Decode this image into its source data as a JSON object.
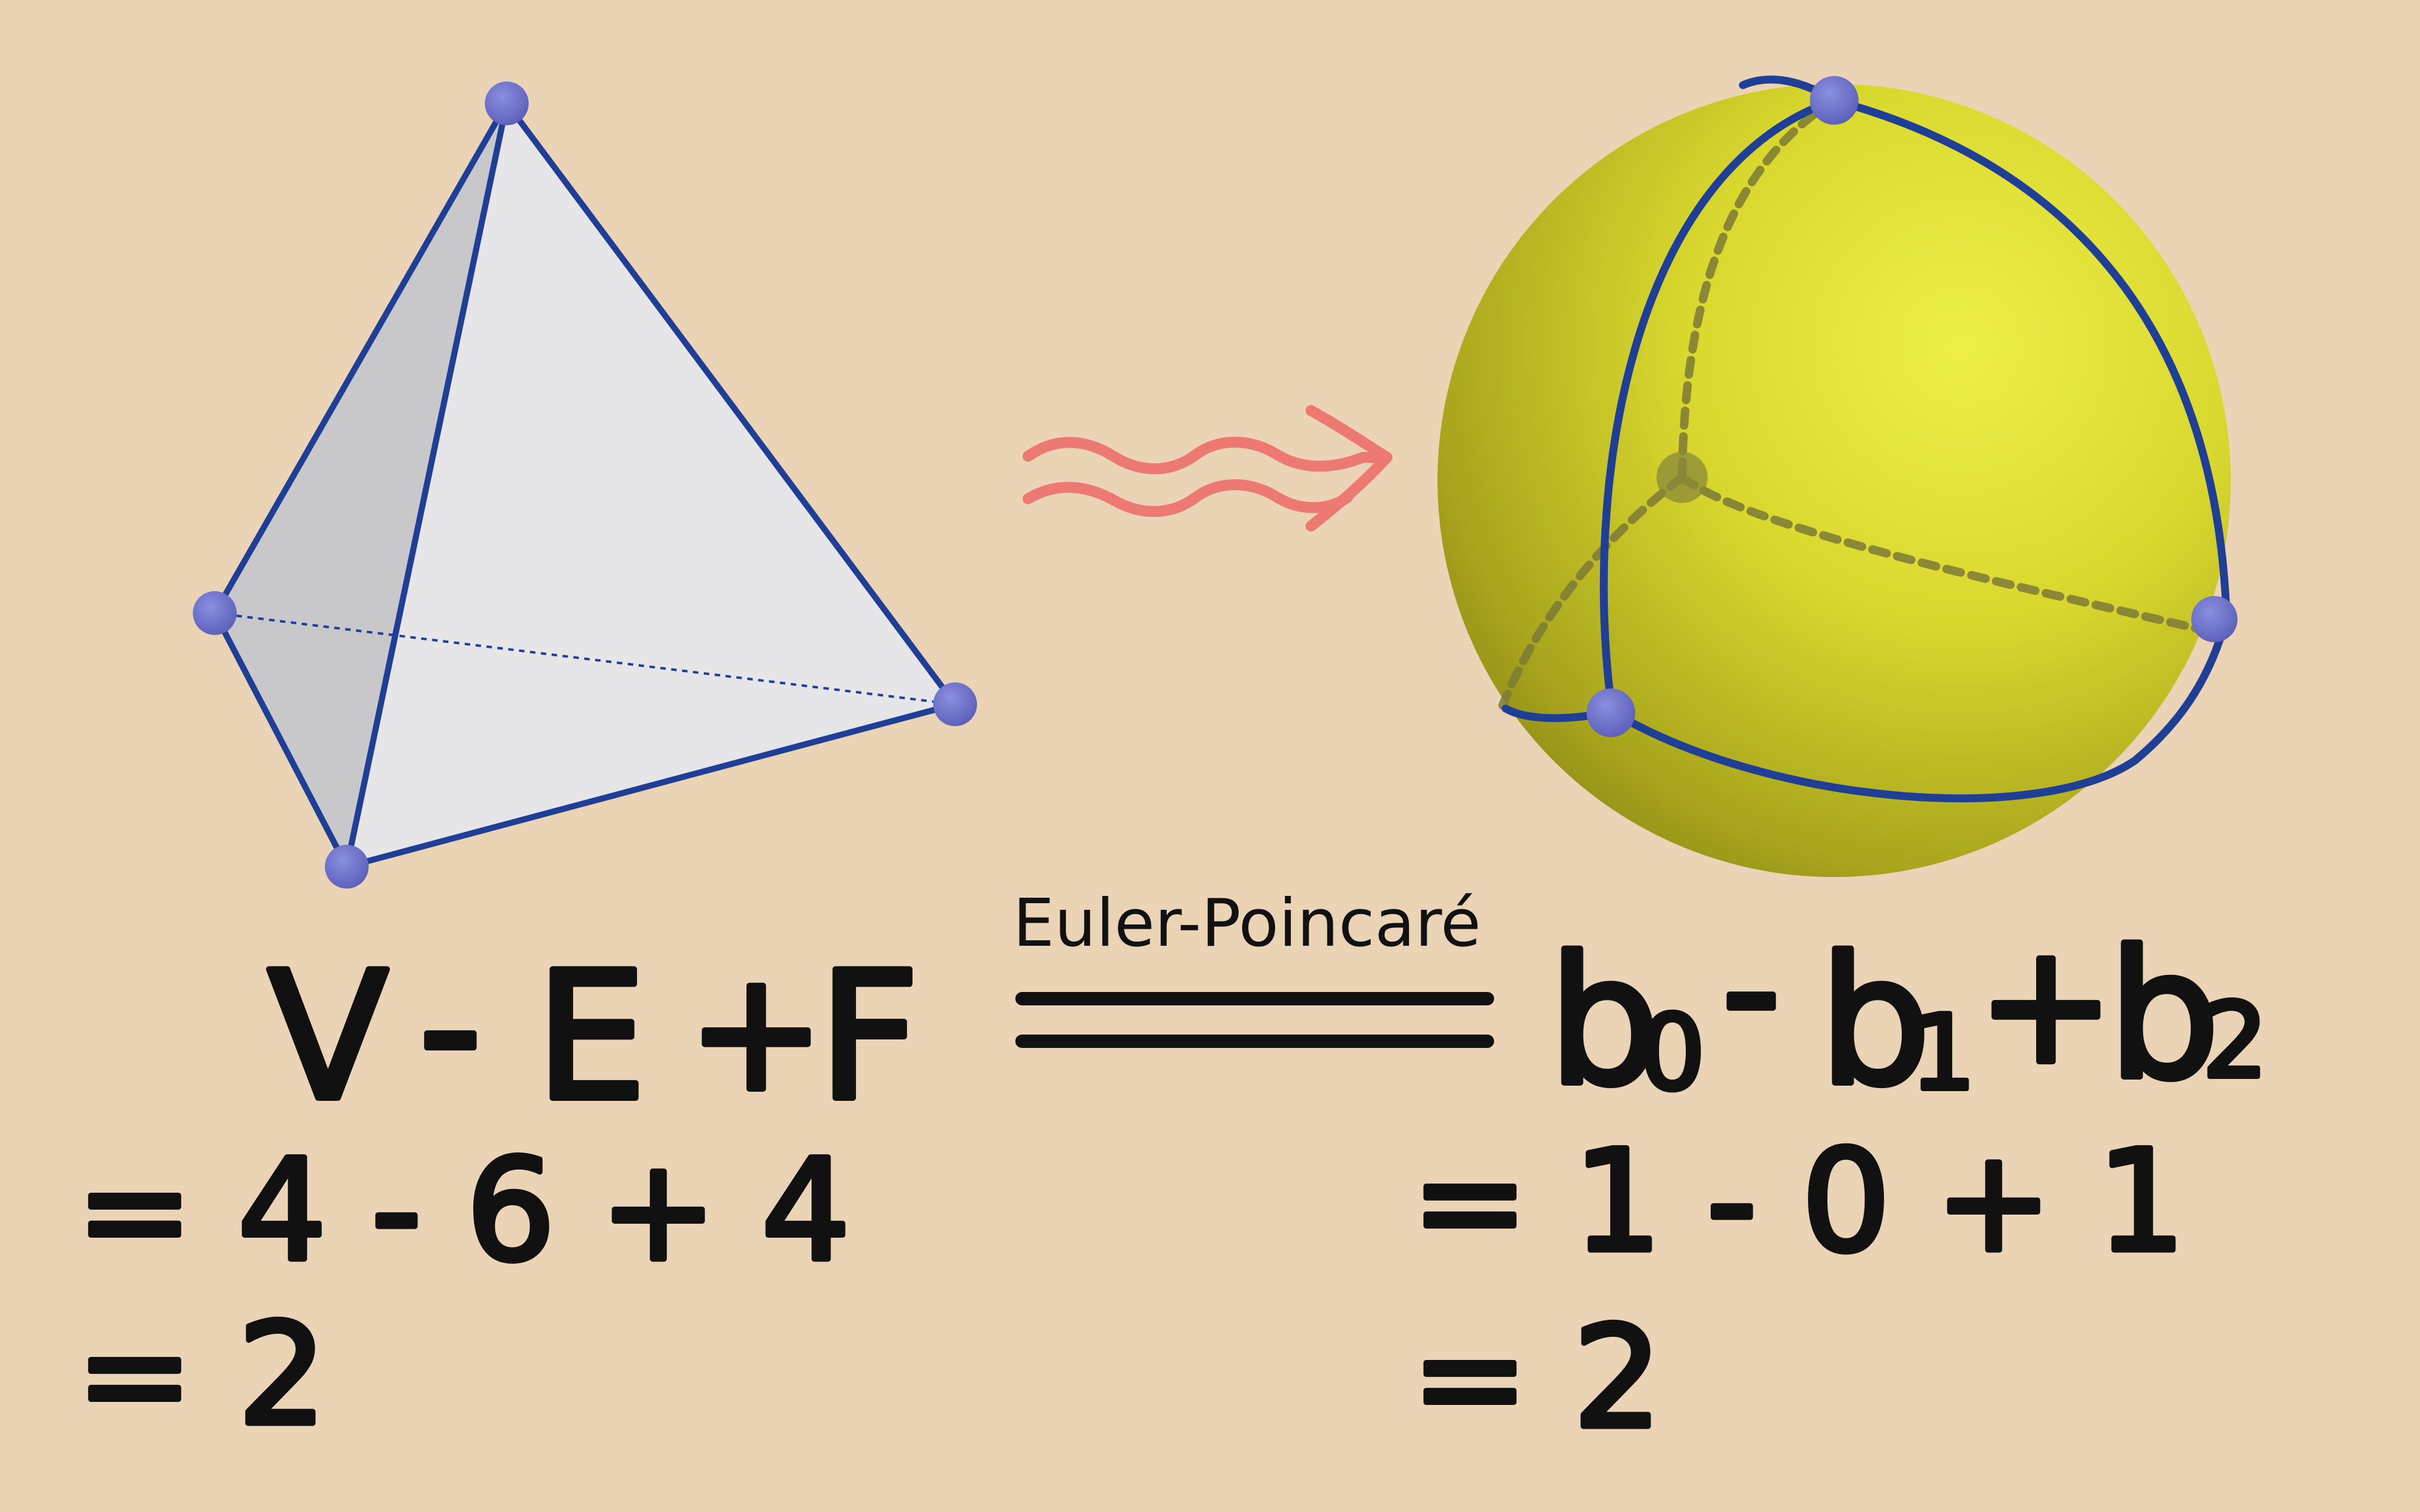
{
  "diagram": {
    "caption": "Euler-Poincaré",
    "left_formula": {
      "V": "V",
      "minus1": "-",
      "E": "E",
      "plus1": "+",
      "F": "F",
      "row2": "= 4 - 6 + 4",
      "row3": "= 2"
    },
    "right_formula": {
      "b": "b",
      "sub0": "0",
      "minus": "-",
      "sub1": "1",
      "plus": "+",
      "sub2": "2",
      "row2": "= 1 - 0 + 1",
      "row3": "= 2"
    },
    "colors": {
      "background": "#ebd3b5",
      "edge": "#1f3f97",
      "vertex": "#6a6ec9",
      "sphere": "#d9d92a",
      "arrow": "#ec7a72",
      "ink": "#111111"
    }
  }
}
